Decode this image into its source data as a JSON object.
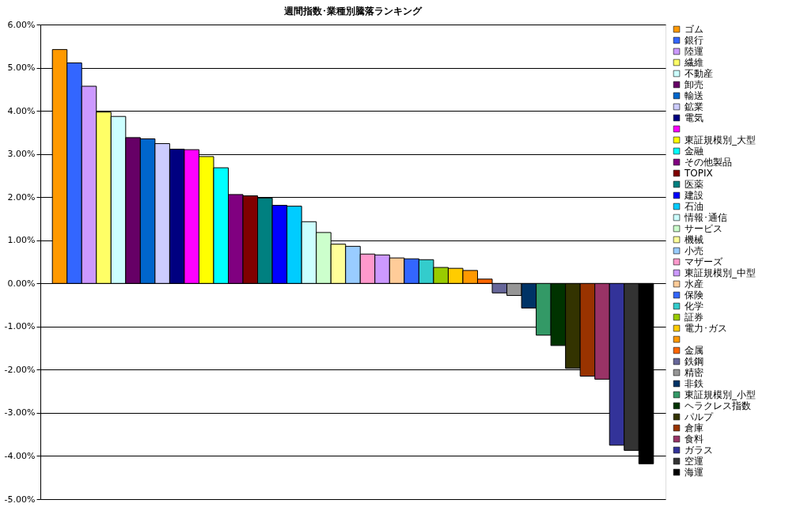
{
  "chart_data": {
    "type": "bar",
    "title": "週間指数･業種別騰落ランキング",
    "categories": [
      null
    ],
    "series": [
      {
        "name": "ゴム",
        "color": "#ff9900",
        "values": [
          5.42
        ]
      },
      {
        "name": "銀行",
        "color": "#3366ff",
        "values": [
          5.11
        ]
      },
      {
        "name": "陸運",
        "color": "#cc99ff",
        "values": [
          4.57
        ]
      },
      {
        "name": "繊維",
        "color": "#ffff66",
        "values": [
          3.97
        ]
      },
      {
        "name": "不動産",
        "color": "#ccffff",
        "values": [
          3.87
        ]
      },
      {
        "name": "卸売",
        "color": "#660066",
        "values": [
          3.38
        ]
      },
      {
        "name": "輸送",
        "color": "#0066cc",
        "values": [
          3.35
        ]
      },
      {
        "name": "鉱業",
        "color": "#ccccff",
        "values": [
          3.24
        ]
      },
      {
        "name": "電気",
        "color": "#000080",
        "values": [
          3.11
        ]
      },
      {
        "color": "#ff00ff",
        "values": [
          3.1
        ]
      },
      {
        "name": "東証規模別_大型",
        "color": "#ffff00",
        "values": [
          2.94
        ]
      },
      {
        "name": "金融",
        "color": "#00ffff",
        "values": [
          2.68
        ]
      },
      {
        "name": "その他製品",
        "color": "#800080",
        "values": [
          2.06
        ]
      },
      {
        "name": "TOPIX",
        "color": "#800000",
        "values": [
          2.03
        ]
      },
      {
        "name": "医薬",
        "color": "#008080",
        "values": [
          1.98
        ]
      },
      {
        "name": "建設",
        "color": "#0000ff",
        "values": [
          1.81
        ]
      },
      {
        "name": "石油",
        "color": "#00ccff",
        "values": [
          1.79
        ]
      },
      {
        "name": "情報･通信",
        "color": "#ccffff",
        "values": [
          1.43
        ]
      },
      {
        "name": "サービス",
        "color": "#ccffcc",
        "values": [
          1.18
        ]
      },
      {
        "name": "機械",
        "color": "#ffff99",
        "values": [
          0.91
        ]
      },
      {
        "name": "小売",
        "color": "#99ccff",
        "values": [
          0.86
        ]
      },
      {
        "name": "マザーズ",
        "color": "#ff99cc",
        "values": [
          0.68
        ]
      },
      {
        "name": "東証規模別_中型",
        "color": "#cc99ff",
        "values": [
          0.66
        ]
      },
      {
        "name": "水産",
        "color": "#ffcc99",
        "values": [
          0.59
        ]
      },
      {
        "name": "保険",
        "color": "#3366ff",
        "values": [
          0.57
        ]
      },
      {
        "name": "化学",
        "color": "#33cccc",
        "values": [
          0.55
        ]
      },
      {
        "name": "証券",
        "color": "#99cc00",
        "values": [
          0.37
        ]
      },
      {
        "name": "電力･ガス",
        "color": "#ffcc00",
        "values": [
          0.35
        ]
      },
      {
        "color": "#ff9900",
        "values": [
          0.3
        ]
      },
      {
        "name": "金属",
        "color": "#ff6600",
        "values": [
          0.1
        ]
      },
      {
        "name": "鉄鋼",
        "color": "#666699",
        "values": [
          -0.22
        ]
      },
      {
        "name": "精密",
        "color": "#969696",
        "values": [
          -0.28
        ]
      },
      {
        "name": "非鉄",
        "color": "#003366",
        "values": [
          -0.57
        ]
      },
      {
        "name": "東証規模別_小型",
        "color": "#339966",
        "values": [
          -1.2
        ]
      },
      {
        "name": "ヘラクレス指数",
        "color": "#003300",
        "values": [
          -1.44
        ]
      },
      {
        "name": "パルプ",
        "color": "#333300",
        "values": [
          -1.97
        ]
      },
      {
        "name": "倉庫",
        "color": "#993300",
        "values": [
          -2.15
        ]
      },
      {
        "name": "食料",
        "color": "#993366",
        "values": [
          -2.22
        ]
      },
      {
        "name": "ガラス",
        "color": "#333399",
        "values": [
          -3.75
        ]
      },
      {
        "name": "空運",
        "color": "#333333",
        "values": [
          -3.87
        ]
      },
      {
        "name": "海運",
        "color": "#000000",
        "values": [
          -4.18
        ]
      }
    ],
    "ylim": [
      -5,
      6
    ],
    "yticks": [
      {
        "value": -5,
        "label": "-5.00%"
      },
      {
        "value": -4,
        "label": "-4.00%"
      },
      {
        "value": -3,
        "label": "-3.00%"
      },
      {
        "value": -2,
        "label": "-2.00%"
      },
      {
        "value": -1,
        "label": "-1.00%"
      },
      {
        "value": 0,
        "label": "0.00%"
      },
      {
        "value": 1,
        "label": "1.00%"
      },
      {
        "value": 2,
        "label": "2.00%"
      },
      {
        "value": 3,
        "label": "3.00%"
      },
      {
        "value": 4,
        "label": "4.00%"
      },
      {
        "value": 5,
        "label": "5.00%"
      },
      {
        "value": 6,
        "label": "6.00%"
      }
    ],
    "grid": "y",
    "legend": "right",
    "tick_labels": "y"
  }
}
